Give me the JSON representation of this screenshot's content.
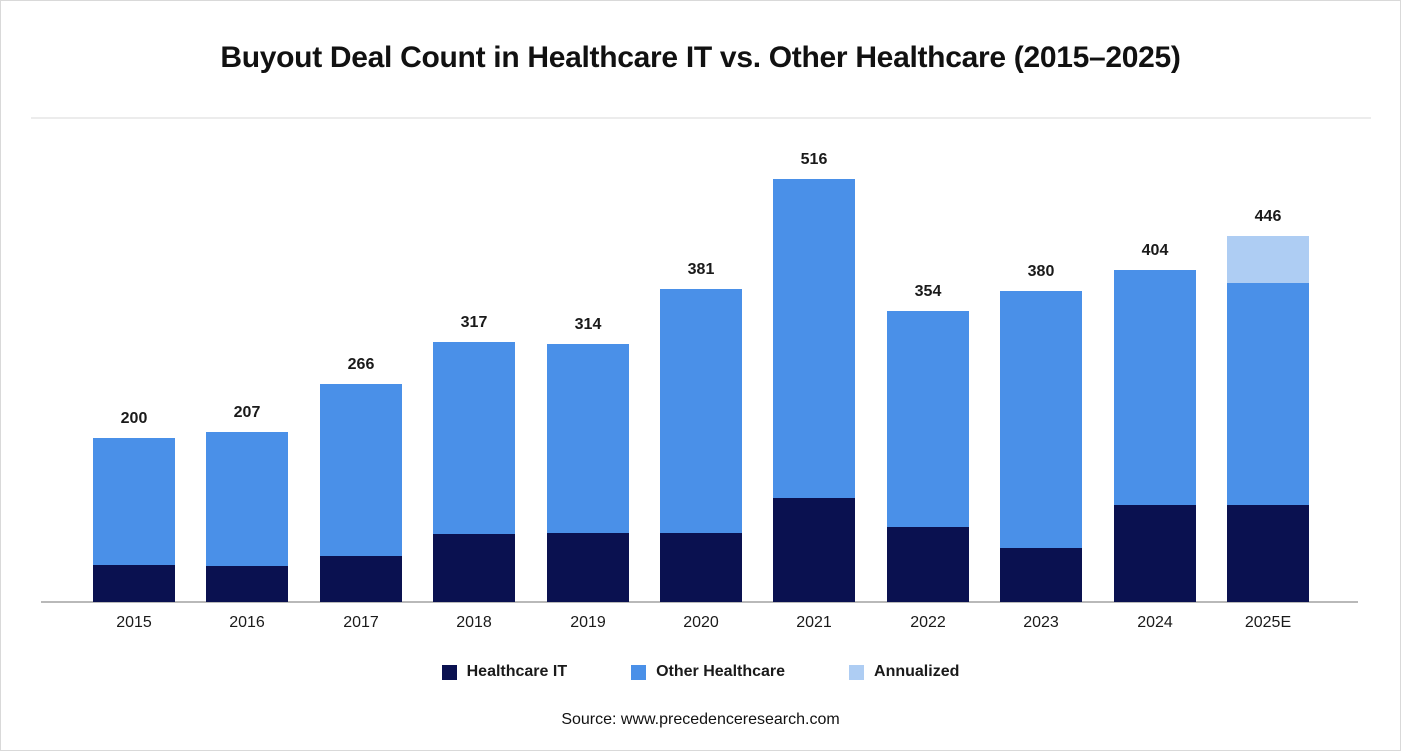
{
  "page": {
    "title": "Buyout Deal Count in Healthcare IT vs. Other Healthcare (2015–2025)",
    "source": "Source: www.precedenceresearch.com"
  },
  "colors": {
    "healthcare_it": "#0a1150",
    "other_healthcare": "#4a90e8",
    "annualized": "#aecdf3",
    "axis_line": "#b9b9b9",
    "divider": "#ececec",
    "text": "#1a1a1a"
  },
  "legend": {
    "position": "bottom",
    "items": [
      {
        "label": "Healthcare IT",
        "color": "#0a1150"
      },
      {
        "label": "Other Healthcare",
        "color": "#4a90e8"
      },
      {
        "label": "Annualized",
        "color": "#aecdf3"
      }
    ]
  },
  "chart_data": {
    "type": "bar",
    "stacked": true,
    "title": "Buyout Deal Count in Healthcare IT vs. Other Healthcare (2015–2025)",
    "xlabel": "",
    "ylabel": "",
    "grid": false,
    "y_axis_visible": false,
    "ylim": [
      0,
      560
    ],
    "categories": [
      "2015",
      "2016",
      "2017",
      "2018",
      "2019",
      "2020",
      "2021",
      "2022",
      "2023",
      "2024",
      "2025E"
    ],
    "totals": [
      200,
      207,
      266,
      317,
      314,
      381,
      516,
      354,
      380,
      404,
      446
    ],
    "data_labels": "total above each bar",
    "series": [
      {
        "name": "Healthcare IT",
        "color": "#0a1150",
        "values": [
          45,
          44,
          56,
          83,
          84,
          84,
          127,
          91,
          66,
          118,
          118
        ]
      },
      {
        "name": "Other Healthcare",
        "color": "#4a90e8",
        "values": [
          155,
          163,
          210,
          234,
          230,
          297,
          389,
          263,
          314,
          286,
          271
        ]
      },
      {
        "name": "Annualized",
        "color": "#aecdf3",
        "values": [
          0,
          0,
          0,
          0,
          0,
          0,
          0,
          0,
          0,
          0,
          57
        ]
      }
    ]
  }
}
